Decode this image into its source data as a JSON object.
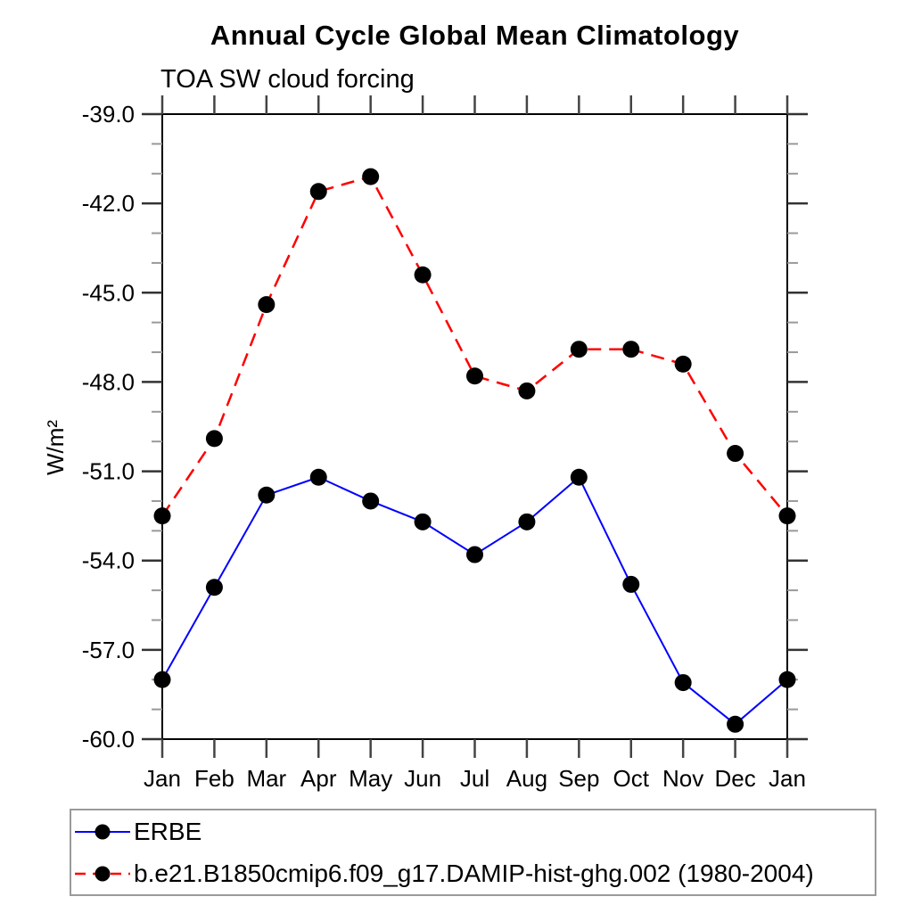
{
  "page": {
    "background_color": "#ffffff",
    "text_color": "#000000"
  },
  "chart_data": {
    "type": "line",
    "title": "Annual Cycle Global Mean Climatology",
    "subtitle": "TOA SW cloud forcing",
    "ylabel": "W/m²",
    "xlabel": "",
    "categories": [
      "Jan",
      "Feb",
      "Mar",
      "Apr",
      "May",
      "Jun",
      "Jul",
      "Aug",
      "Sep",
      "Oct",
      "Nov",
      "Dec",
      "Jan"
    ],
    "ylim": [
      -60.0,
      -39.0
    ],
    "ytick_major_values": [
      -39.0,
      -42.0,
      -45.0,
      -48.0,
      -51.0,
      -54.0,
      -57.0,
      -60.0
    ],
    "ytick_labels": [
      "-39.0",
      "-42.0",
      "-45.0",
      "-48.0",
      "-51.0",
      "-54.0",
      "-57.0",
      "-60.0"
    ],
    "ytick_minor_interval": 1.0,
    "grid": false,
    "legend_position": "bottom",
    "series": [
      {
        "name": "ERBE",
        "color": "#0000ff",
        "line_style": "solid",
        "marker": "filled-circle",
        "marker_color": "#000000",
        "values": [
          -58.0,
          -54.9,
          -51.8,
          -51.2,
          -52.0,
          -52.7,
          -53.8,
          -52.7,
          -51.2,
          -54.8,
          -58.1,
          -59.5,
          -58.0
        ]
      },
      {
        "name": "b.e21.B1850cmip6.f09_g17.DAMIP-hist-ghg.002 (1980-2004)",
        "color": "#ff0000",
        "line_style": "dashed",
        "marker": "filled-circle",
        "marker_color": "#000000",
        "values": [
          -52.5,
          -49.9,
          -45.4,
          -41.6,
          -41.1,
          -44.4,
          -47.8,
          -48.3,
          -46.9,
          -46.9,
          -47.4,
          -50.4,
          -52.5
        ]
      }
    ]
  }
}
